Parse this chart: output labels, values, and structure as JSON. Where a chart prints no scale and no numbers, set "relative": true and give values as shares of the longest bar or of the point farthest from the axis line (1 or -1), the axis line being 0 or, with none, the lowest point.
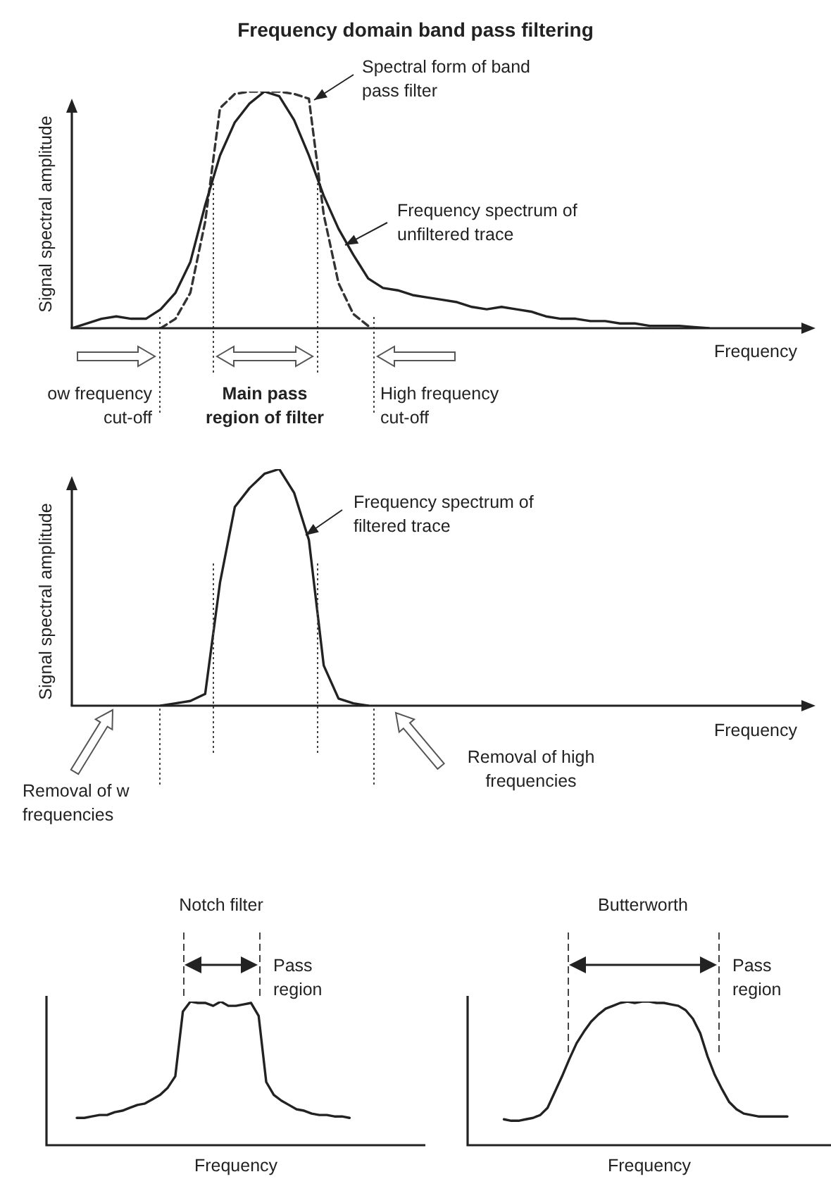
{
  "chart_data": [
    {
      "type": "line",
      "title": "Frequency domain band pass filtering",
      "xlabel": "Frequency",
      "ylabel": "Signal spectral amplitude",
      "relative": true,
      "legend": false,
      "marker": "none",
      "categories": [
        null,
        null,
        null,
        null,
        null,
        null,
        null,
        null,
        null,
        null,
        null,
        null,
        null,
        null,
        null,
        null,
        null,
        null,
        null,
        null,
        null,
        null,
        null,
        null,
        null,
        null,
        null,
        null,
        null,
        null,
        null,
        null,
        null,
        null,
        null,
        null,
        null,
        null,
        null,
        null,
        null,
        null,
        null,
        null,
        null,
        null,
        null,
        null,
        null,
        null,
        null
      ],
      "series": [
        {
          "color": "#222222",
          "line_style": "solid",
          "values": [
            0,
            0.02,
            0.04,
            0.05,
            0.04,
            0.04,
            0.08,
            0.15,
            0.28,
            0.52,
            0.73,
            0.87,
            0.95,
            1,
            0.98,
            0.88,
            0.73,
            0.56,
            0.42,
            0.31,
            0.21,
            0.17,
            0.16,
            0.14,
            0.13,
            0.12,
            0.11,
            0.09,
            0.08,
            0.09,
            0.08,
            0.07,
            0.05,
            0.04,
            0.04,
            0.03,
            0.03,
            0.02,
            0.02,
            0.01,
            0.01,
            0.01,
            0.005,
            0,
            null,
            null,
            null,
            null,
            null,
            null,
            null
          ]
        },
        {
          "color": "#333333",
          "line_style": "dashed",
          "values": [
            null,
            null,
            null,
            null,
            null,
            null,
            0,
            0.04,
            0.15,
            0.45,
            0.93,
            0.99,
            1,
            1,
            1,
            0.99,
            0.97,
            0.48,
            0.19,
            0.06,
            0.01,
            null,
            null,
            null,
            null,
            null,
            null,
            null,
            null,
            null,
            null,
            null,
            null,
            null,
            null,
            null,
            null,
            null,
            null,
            null,
            null,
            null,
            null,
            null,
            null,
            null,
            null,
            null,
            null,
            null,
            null
          ]
        }
      ],
      "annotations": [
        "Spectral form of band pass filter",
        "Frequency spectrum of unfiltered trace",
        "ow frequency cut-off",
        "Main pass region of filter",
        "High frequency cut-off"
      ]
    },
    {
      "type": "line",
      "xlabel": "Frequency",
      "ylabel": "Signal spectral amplitude",
      "relative": true,
      "legend": false,
      "marker": "none",
      "categories": [
        null,
        null,
        null,
        null,
        null,
        null,
        null,
        null,
        null,
        null,
        null,
        null,
        null,
        null,
        null,
        null,
        null,
        null,
        null,
        null,
        null,
        null,
        null,
        null,
        null,
        null,
        null,
        null,
        null,
        null,
        null,
        null,
        null,
        null,
        null,
        null,
        null,
        null,
        null,
        null,
        null,
        null,
        null,
        null,
        null,
        null,
        null,
        null,
        null,
        null,
        null
      ],
      "series": [
        {
          "color": "#222222",
          "line_style": "solid",
          "values": [
            null,
            null,
            null,
            null,
            null,
            null,
            0,
            0.01,
            0.02,
            0.05,
            0.52,
            0.84,
            0.92,
            0.98,
            1,
            0.9,
            0.7,
            0.17,
            0.03,
            0.01,
            0,
            null,
            null,
            null,
            null,
            null,
            null,
            null,
            null,
            null,
            null,
            null,
            null,
            null,
            null,
            null,
            null,
            null,
            null,
            null,
            null,
            null,
            null,
            null,
            null,
            null,
            null,
            null,
            null,
            null,
            null
          ]
        }
      ],
      "annotations": [
        "Frequency spectrum of filtered trace",
        "Removal of w frequencies",
        "Removal of high frequencies"
      ]
    },
    {
      "type": "line",
      "title": "Notch filter",
      "xlabel": "Frequency",
      "relative": true,
      "legend": false,
      "marker": "none",
      "categories": [
        null,
        null,
        null,
        null,
        null,
        null,
        null,
        null,
        null,
        null,
        null,
        null,
        null,
        null,
        null,
        null,
        null,
        null,
        null,
        null,
        null,
        null,
        null,
        null,
        null,
        null,
        null,
        null,
        null,
        null,
        null,
        null,
        null,
        null,
        null,
        null,
        null,
        null,
        null,
        null,
        null,
        null,
        null,
        null,
        null,
        null,
        null,
        null,
        null,
        null,
        null
      ],
      "series": [
        {
          "color": "#222222",
          "line_style": "solid",
          "values": [
            null,
            null,
            null,
            null,
            0.19,
            0.19,
            0.2,
            0.21,
            0.21,
            0.23,
            0.24,
            0.26,
            0.28,
            0.29,
            0.32,
            0.35,
            0.4,
            0.48,
            0.93,
            1,
            0.99,
            0.99,
            0.97,
            1,
            0.97,
            0.97,
            0.98,
            0.99,
            0.9,
            0.44,
            0.35,
            0.31,
            0.28,
            0.25,
            0.24,
            0.22,
            0.21,
            0.21,
            0.2,
            0.2,
            0.19,
            null,
            null,
            null,
            null,
            null,
            null,
            null,
            null,
            null,
            null
          ]
        }
      ],
      "annotations": [
        "Pass region"
      ]
    },
    {
      "type": "line",
      "title": "Butterworth",
      "xlabel": "Frequency",
      "relative": true,
      "legend": false,
      "marker": "none",
      "categories": [
        null,
        null,
        null,
        null,
        null,
        null,
        null,
        null,
        null,
        null,
        null,
        null,
        null,
        null,
        null,
        null,
        null,
        null,
        null,
        null,
        null,
        null,
        null,
        null,
        null,
        null,
        null,
        null,
        null,
        null,
        null,
        null,
        null,
        null,
        null,
        null,
        null,
        null,
        null,
        null,
        null,
        null,
        null,
        null,
        null,
        null,
        null,
        null,
        null,
        null,
        null
      ],
      "series": [
        {
          "color": "#222222",
          "line_style": "solid",
          "values": [
            null,
            null,
            null,
            null,
            null,
            0.18,
            0.17,
            0.17,
            0.18,
            0.19,
            0.21,
            0.26,
            0.37,
            0.48,
            0.6,
            0.71,
            0.79,
            0.86,
            0.91,
            0.95,
            0.97,
            0.99,
            1,
            0.99,
            1,
            1,
            0.99,
            0.99,
            0.98,
            0.97,
            0.94,
            0.88,
            0.78,
            0.62,
            0.49,
            0.39,
            0.3,
            0.25,
            0.22,
            0.21,
            0.2,
            0.2,
            0.2,
            0.2,
            0.2,
            null,
            null,
            null,
            null,
            null,
            null
          ]
        }
      ],
      "annotations": [
        "Pass region"
      ]
    }
  ]
}
